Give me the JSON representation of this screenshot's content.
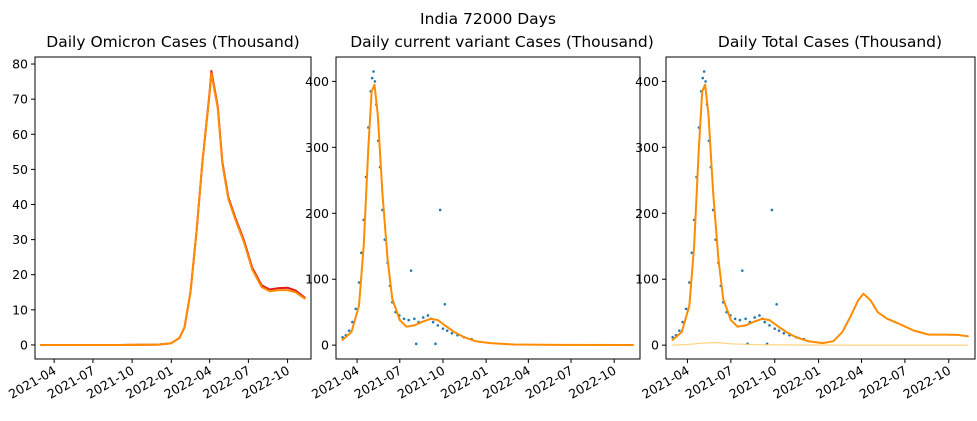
{
  "suptitle": "India 72000 Days",
  "colors": {
    "fit_orange": "#ff8c00",
    "omicron_red": "#e31a1c",
    "scatter_blue": "#1f77b4",
    "faint_orange": "#ffd27f"
  },
  "chart_data": [
    {
      "type": "line",
      "title": "Daily Omicron Cases (Thousand)",
      "xlim": [
        "2021-02-15",
        "2022-11-25"
      ],
      "ylim": [
        -4,
        82
      ],
      "yticks": [
        0,
        10,
        20,
        30,
        40,
        50,
        60,
        70,
        80
      ],
      "xticks": [
        "2021-04",
        "2021-07",
        "2021-10",
        "2022-01",
        "2022-04",
        "2022-07",
        "2022-10"
      ],
      "series": [
        {
          "color": "#e31a1c",
          "x": [
            "2021-03-01",
            "2021-06-01",
            "2021-09-01",
            "2021-12-01",
            "2022-01-01",
            "2022-01-20",
            "2022-02-01",
            "2022-02-15",
            "2022-03-01",
            "2022-03-15",
            "2022-04-01",
            "2022-04-05",
            "2022-04-20",
            "2022-05-01",
            "2022-05-15",
            "2022-06-01",
            "2022-06-20",
            "2022-07-10",
            "2022-08-01",
            "2022-08-20",
            "2022-09-10",
            "2022-10-01",
            "2022-10-20",
            "2022-11-10"
          ],
          "y": [
            0,
            0,
            0,
            0.1,
            0.5,
            2,
            5,
            15,
            32,
            52,
            72,
            78,
            68,
            52,
            42,
            36,
            30,
            22,
            17,
            15.8,
            16.2,
            16.3,
            15.5,
            13.5
          ]
        },
        {
          "color": "#ff8c00",
          "x": [
            "2021-03-01",
            "2021-06-01",
            "2021-09-01",
            "2021-12-01",
            "2022-01-01",
            "2022-01-20",
            "2022-02-01",
            "2022-02-15",
            "2022-03-01",
            "2022-03-15",
            "2022-04-01",
            "2022-04-05",
            "2022-04-20",
            "2022-05-01",
            "2022-05-15",
            "2022-06-01",
            "2022-06-20",
            "2022-07-10",
            "2022-08-01",
            "2022-08-20",
            "2022-09-10",
            "2022-10-01",
            "2022-10-20",
            "2022-11-10"
          ],
          "y": [
            0,
            0,
            0,
            0.1,
            0.5,
            2,
            5,
            15,
            32,
            52,
            71.5,
            77.3,
            67.5,
            51.5,
            41.5,
            35.5,
            29.5,
            21.5,
            16.5,
            15.3,
            15.6,
            15.6,
            15,
            13.2
          ]
        }
      ]
    },
    {
      "type": "scatter",
      "title": "Daily current variant Cases (Thousand)",
      "xlim": [
        "2021-02-15",
        "2022-11-25"
      ],
      "ylim": [
        -21,
        437
      ],
      "yticks": [
        0,
        100,
        200,
        300,
        400
      ],
      "xticks": [
        "2021-04",
        "2021-07",
        "2021-10",
        "2022-01",
        "2022-04",
        "2022-07",
        "2022-10"
      ],
      "points": [
        {
          "x": "2021-03-01",
          "y": 12
        },
        {
          "x": "2021-03-08",
          "y": 15
        },
        {
          "x": "2021-03-15",
          "y": 22
        },
        {
          "x": "2021-03-22",
          "y": 35
        },
        {
          "x": "2021-03-29",
          "y": 55
        },
        {
          "x": "2021-04-05",
          "y": 95
        },
        {
          "x": "2021-04-10",
          "y": 140
        },
        {
          "x": "2021-04-15",
          "y": 190
        },
        {
          "x": "2021-04-20",
          "y": 255
        },
        {
          "x": "2021-04-25",
          "y": 330
        },
        {
          "x": "2021-04-30",
          "y": 385
        },
        {
          "x": "2021-05-03",
          "y": 405
        },
        {
          "x": "2021-05-06",
          "y": 415
        },
        {
          "x": "2021-05-09",
          "y": 400
        },
        {
          "x": "2021-05-12",
          "y": 365
        },
        {
          "x": "2021-05-16",
          "y": 310
        },
        {
          "x": "2021-05-20",
          "y": 270
        },
        {
          "x": "2021-05-25",
          "y": 205
        },
        {
          "x": "2021-05-30",
          "y": 160
        },
        {
          "x": "2021-06-05",
          "y": 125
        },
        {
          "x": "2021-06-10",
          "y": 90
        },
        {
          "x": "2021-06-15",
          "y": 65
        },
        {
          "x": "2021-06-22",
          "y": 50
        },
        {
          "x": "2021-06-30",
          "y": 45
        },
        {
          "x": "2021-07-10",
          "y": 40
        },
        {
          "x": "2021-07-20",
          "y": 38
        },
        {
          "x": "2021-07-25",
          "y": 113
        },
        {
          "x": "2021-08-01",
          "y": 40
        },
        {
          "x": "2021-08-05",
          "y": 2
        },
        {
          "x": "2021-08-10",
          "y": 35
        },
        {
          "x": "2021-08-20",
          "y": 42
        },
        {
          "x": "2021-08-30",
          "y": 45
        },
        {
          "x": "2021-09-05",
          "y": 40
        },
        {
          "x": "2021-09-10",
          "y": 35
        },
        {
          "x": "2021-09-15",
          "y": 2
        },
        {
          "x": "2021-09-20",
          "y": 30
        },
        {
          "x": "2021-09-25",
          "y": 205
        },
        {
          "x": "2021-10-01",
          "y": 25
        },
        {
          "x": "2021-10-05",
          "y": 62
        },
        {
          "x": "2021-10-10",
          "y": 22
        },
        {
          "x": "2021-10-20",
          "y": 18
        },
        {
          "x": "2021-11-01",
          "y": 15
        },
        {
          "x": "2021-11-15",
          "y": 12
        },
        {
          "x": "2021-12-01",
          "y": 9
        }
      ],
      "series": [
        {
          "color": "#ff8c00",
          "x": [
            "2021-03-01",
            "2021-03-20",
            "2021-04-05",
            "2021-04-15",
            "2021-04-25",
            "2021-05-02",
            "2021-05-08",
            "2021-05-15",
            "2021-05-25",
            "2021-06-05",
            "2021-06-15",
            "2021-07-01",
            "2021-07-15",
            "2021-08-01",
            "2021-08-20",
            "2021-09-05",
            "2021-09-20",
            "2021-10-05",
            "2021-10-25",
            "2021-11-15",
            "2021-12-10",
            "2022-01-10",
            "2022-03-01",
            "2022-06-01",
            "2022-11-10"
          ],
          "y": [
            8,
            20,
            60,
            150,
            300,
            385,
            395,
            350,
            230,
            130,
            70,
            38,
            28,
            30,
            36,
            40,
            38,
            30,
            20,
            12,
            6,
            3,
            1,
            0.5,
            0.3
          ]
        }
      ]
    },
    {
      "type": "scatter",
      "title": "Daily Total Cases (Thousand)",
      "xlim": [
        "2021-02-15",
        "2022-11-25"
      ],
      "ylim": [
        -21,
        437
      ],
      "yticks": [
        0,
        100,
        200,
        300,
        400
      ],
      "xticks": [
        "2021-04",
        "2021-07",
        "2021-10",
        "2022-01",
        "2022-04",
        "2022-07",
        "2022-10"
      ],
      "points": [
        {
          "x": "2021-03-01",
          "y": 12
        },
        {
          "x": "2021-03-08",
          "y": 15
        },
        {
          "x": "2021-03-15",
          "y": 22
        },
        {
          "x": "2021-03-22",
          "y": 35
        },
        {
          "x": "2021-03-29",
          "y": 55
        },
        {
          "x": "2021-04-05",
          "y": 95
        },
        {
          "x": "2021-04-10",
          "y": 140
        },
        {
          "x": "2021-04-15",
          "y": 190
        },
        {
          "x": "2021-04-20",
          "y": 255
        },
        {
          "x": "2021-04-25",
          "y": 330
        },
        {
          "x": "2021-04-30",
          "y": 385
        },
        {
          "x": "2021-05-03",
          "y": 405
        },
        {
          "x": "2021-05-06",
          "y": 415
        },
        {
          "x": "2021-05-09",
          "y": 400
        },
        {
          "x": "2021-05-12",
          "y": 365
        },
        {
          "x": "2021-05-16",
          "y": 310
        },
        {
          "x": "2021-05-20",
          "y": 270
        },
        {
          "x": "2021-05-25",
          "y": 205
        },
        {
          "x": "2021-05-30",
          "y": 160
        },
        {
          "x": "2021-06-05",
          "y": 125
        },
        {
          "x": "2021-06-10",
          "y": 90
        },
        {
          "x": "2021-06-15",
          "y": 65
        },
        {
          "x": "2021-06-22",
          "y": 50
        },
        {
          "x": "2021-06-30",
          "y": 45
        },
        {
          "x": "2021-07-10",
          "y": 40
        },
        {
          "x": "2021-07-20",
          "y": 38
        },
        {
          "x": "2021-07-25",
          "y": 113
        },
        {
          "x": "2021-08-01",
          "y": 40
        },
        {
          "x": "2021-08-05",
          "y": 2
        },
        {
          "x": "2021-08-10",
          "y": 35
        },
        {
          "x": "2021-08-20",
          "y": 42
        },
        {
          "x": "2021-08-30",
          "y": 45
        },
        {
          "x": "2021-09-05",
          "y": 40
        },
        {
          "x": "2021-09-10",
          "y": 35
        },
        {
          "x": "2021-09-15",
          "y": 2
        },
        {
          "x": "2021-09-20",
          "y": 30
        },
        {
          "x": "2021-09-25",
          "y": 205
        },
        {
          "x": "2021-10-01",
          "y": 25
        },
        {
          "x": "2021-10-05",
          "y": 62
        },
        {
          "x": "2021-10-10",
          "y": 22
        },
        {
          "x": "2021-10-20",
          "y": 18
        },
        {
          "x": "2021-11-01",
          "y": 15
        },
        {
          "x": "2021-11-15",
          "y": 12
        },
        {
          "x": "2021-12-01",
          "y": 9
        }
      ],
      "series": [
        {
          "color": "#ff8c00",
          "x": [
            "2021-03-01",
            "2021-03-20",
            "2021-04-05",
            "2021-04-15",
            "2021-04-25",
            "2021-05-02",
            "2021-05-08",
            "2021-05-15",
            "2021-05-25",
            "2021-06-05",
            "2021-06-15",
            "2021-07-01",
            "2021-07-15",
            "2021-08-01",
            "2021-08-20",
            "2021-09-05",
            "2021-09-20",
            "2021-10-05",
            "2021-10-25",
            "2021-11-15",
            "2021-12-10",
            "2022-01-10",
            "2022-02-01",
            "2022-02-20",
            "2022-03-10",
            "2022-03-25",
            "2022-04-05",
            "2022-04-20",
            "2022-05-05",
            "2022-05-25",
            "2022-06-20",
            "2022-07-20",
            "2022-08-20",
            "2022-09-20",
            "2022-10-20",
            "2022-11-10"
          ],
          "y": [
            8,
            20,
            60,
            150,
            300,
            385,
            395,
            350,
            230,
            130,
            70,
            38,
            28,
            30,
            36,
            40,
            38,
            30,
            20,
            12,
            6,
            3,
            6,
            20,
            45,
            68,
            78,
            68,
            50,
            40,
            32,
            22,
            16,
            16,
            15.5,
            13.5
          ]
        },
        {
          "color": "#ffd27f",
          "x": [
            "2021-03-01",
            "2021-04-01",
            "2021-05-01",
            "2021-06-01",
            "2021-07-01",
            "2021-09-01",
            "2021-12-01",
            "2022-03-01",
            "2022-06-01",
            "2022-11-10"
          ],
          "y": [
            0,
            1,
            3,
            4,
            2,
            0.5,
            0.2,
            0,
            0,
            0
          ]
        }
      ]
    }
  ]
}
